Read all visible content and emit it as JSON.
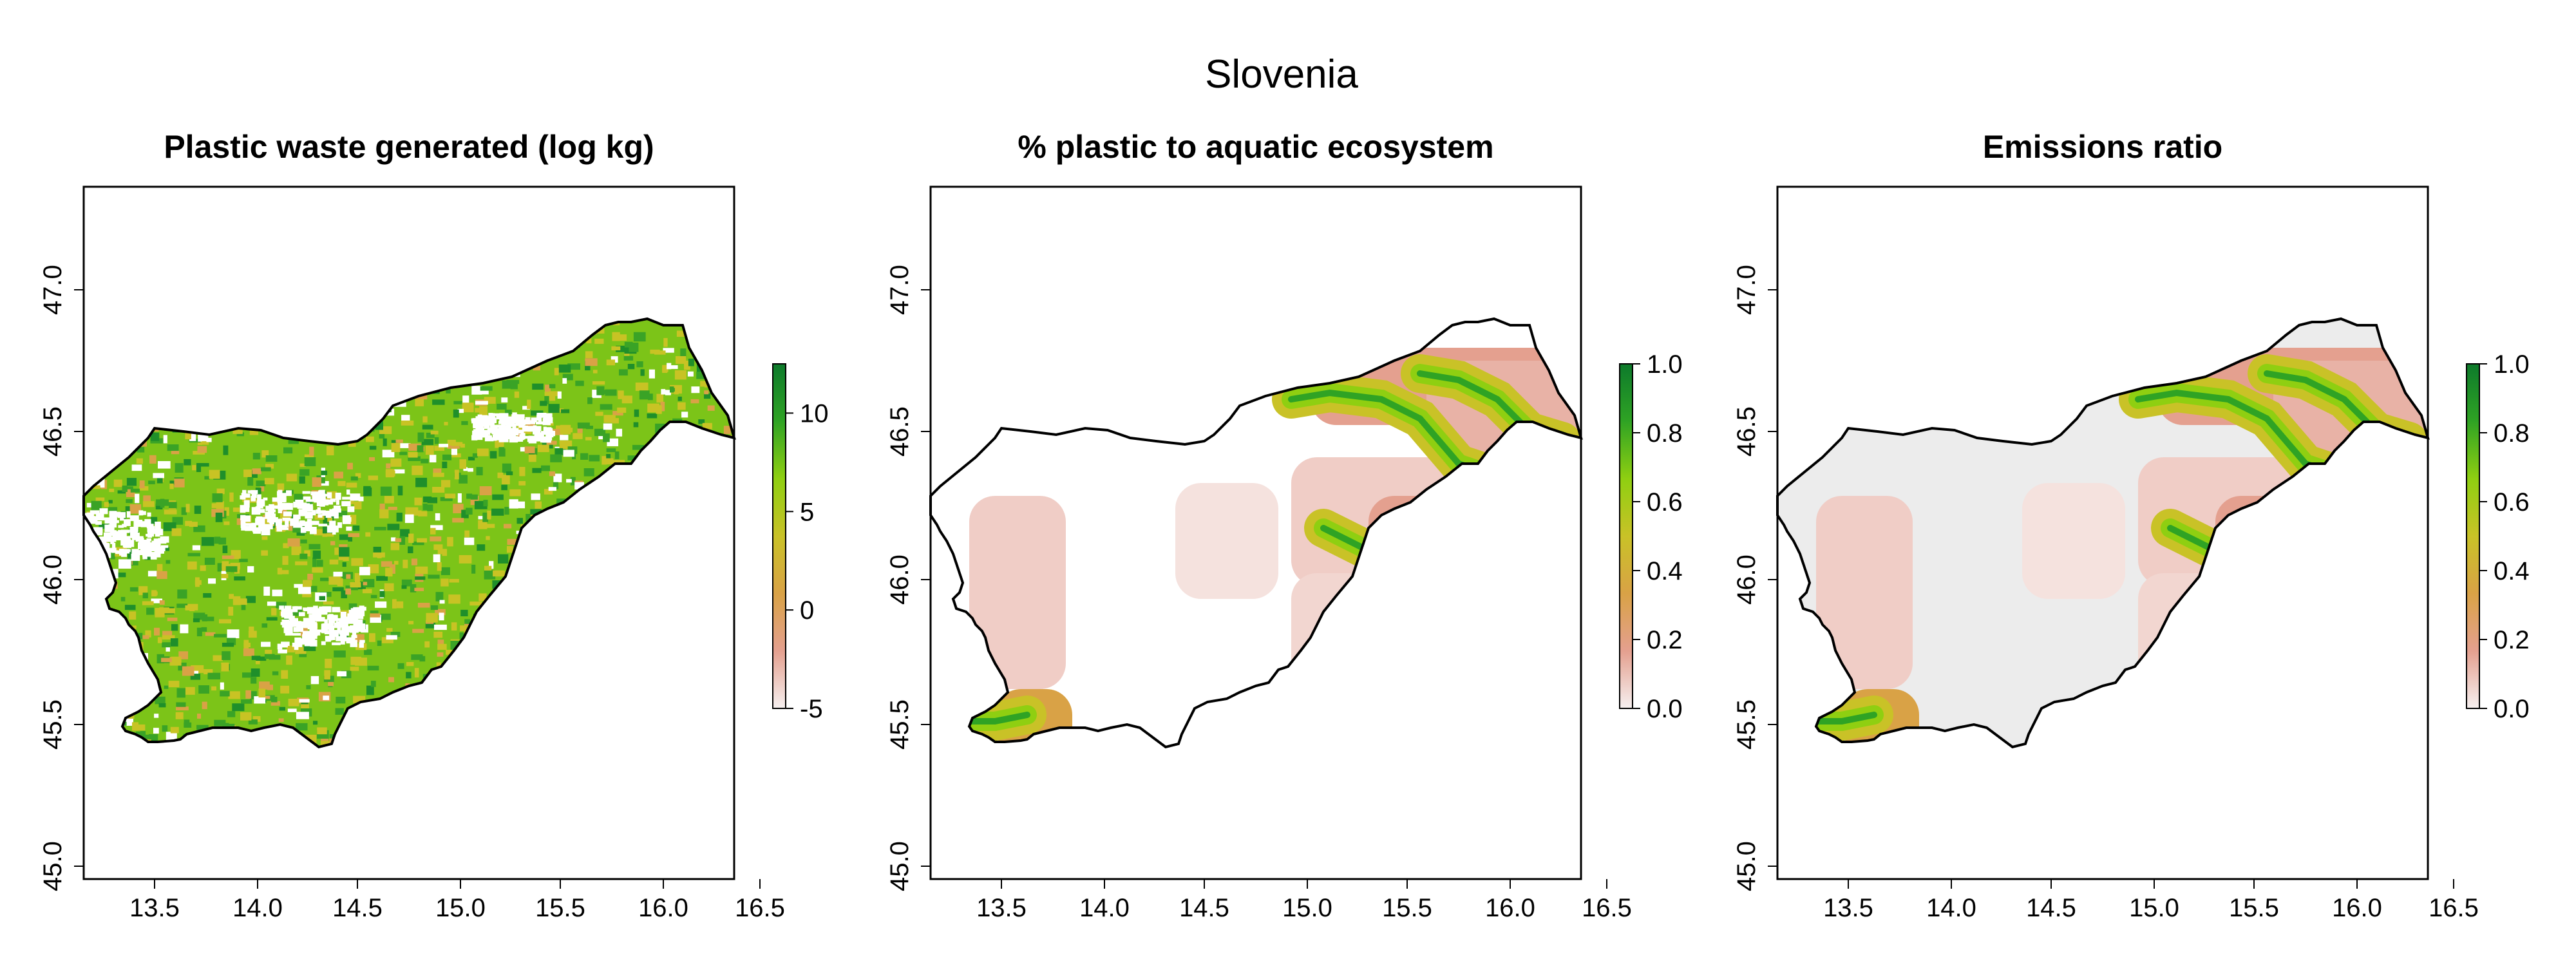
{
  "figure": {
    "title": "Slovenia",
    "x_ticks": [
      "13.5",
      "14.0",
      "14.5",
      "15.0",
      "15.5",
      "16.0",
      "16.5"
    ],
    "y_ticks": [
      "45.0",
      "45.5",
      "46.0",
      "46.5",
      "47.0"
    ],
    "panels": [
      {
        "title": "Plastic waste generated (log kg)",
        "legend_ticks": [
          "-5",
          "0",
          "5",
          "10"
        ],
        "legend_range": [
          -5,
          12.5
        ],
        "palette": [
          "#f6f0f0",
          "#e4a08f",
          "#d9a246",
          "#c9c227",
          "#8fcf11",
          "#2fa324",
          "#0d7a2b"
        ]
      },
      {
        "title": "% plastic to aquatic ecosystem",
        "legend_ticks": [
          "0.0",
          "0.2",
          "0.4",
          "0.6",
          "0.8",
          "1.0"
        ],
        "legend_range": [
          0,
          1
        ],
        "palette": [
          "#f6f0f0",
          "#e4a08f",
          "#d9a246",
          "#c9c227",
          "#8fcf11",
          "#2fa324",
          "#0d7a2b"
        ]
      },
      {
        "title": "Emissions ratio",
        "legend_ticks": [
          "0.0",
          "0.2",
          "0.4",
          "0.6",
          "0.8",
          "1.0"
        ],
        "legend_range": [
          0,
          1
        ],
        "palette": [
          "#f6f0f0",
          "#e4a08f",
          "#d9a246",
          "#c9c227",
          "#8fcf11",
          "#2fa324",
          "#0d7a2b"
        ]
      }
    ]
  }
}
